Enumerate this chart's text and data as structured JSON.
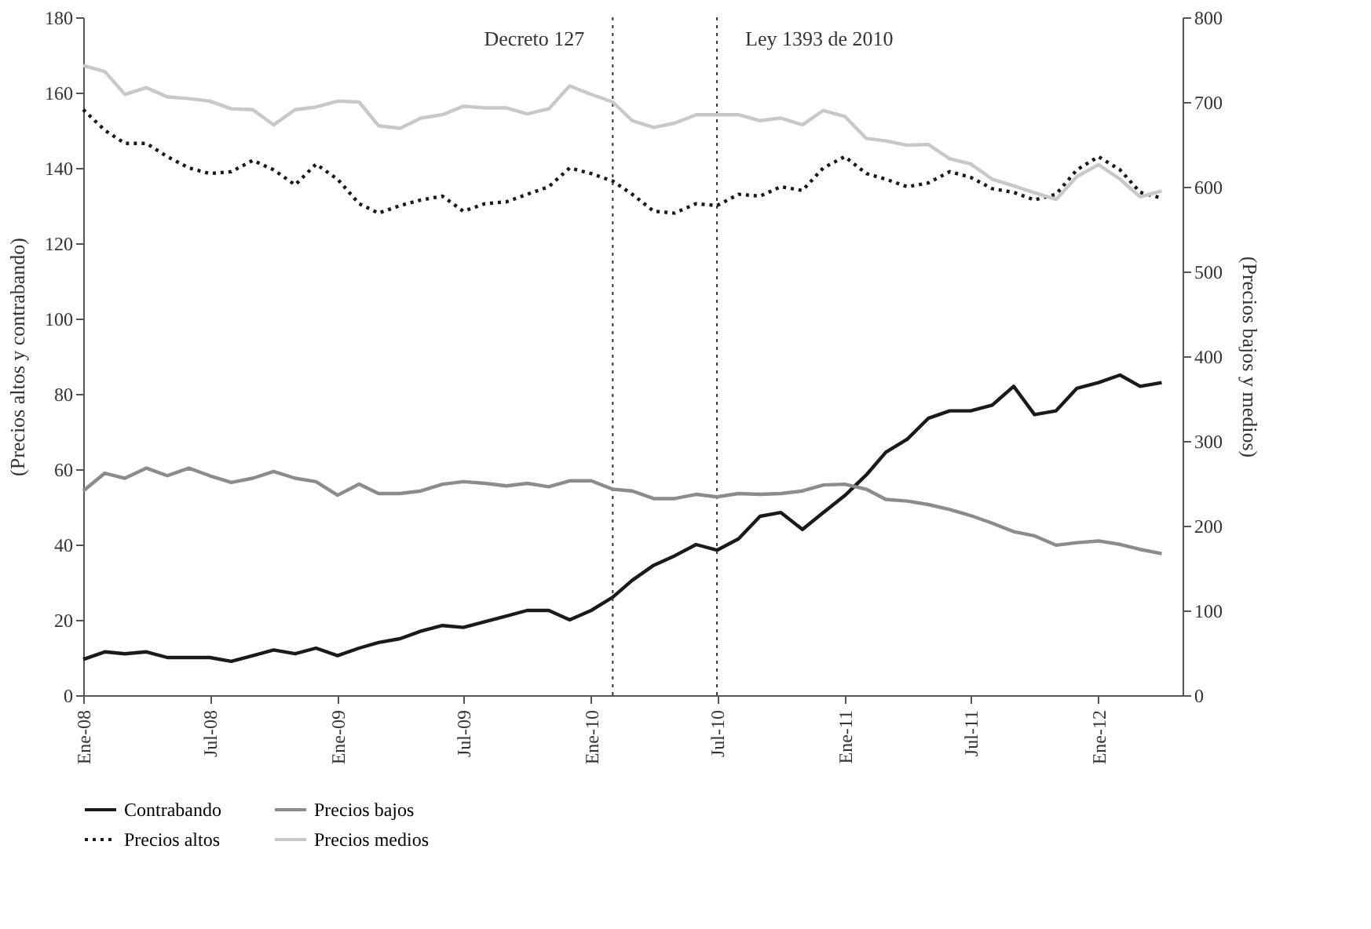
{
  "chart_data": {
    "type": "line",
    "xlabel": null,
    "ylabel": "(Precios altos y contrabando)",
    "y2label": "(Precios bajos y medios)",
    "x": [
      "2008-01",
      "2008-02",
      "2008-03",
      "2008-04",
      "2008-05",
      "2008-06",
      "2008-07",
      "2008-08",
      "2008-09",
      "2008-10",
      "2008-11",
      "2008-12",
      "2009-01",
      "2009-02",
      "2009-03",
      "2009-04",
      "2009-05",
      "2009-06",
      "2009-07",
      "2009-08",
      "2009-09",
      "2009-10",
      "2009-11",
      "2009-12",
      "2010-01",
      "2010-02",
      "2010-03",
      "2010-04",
      "2010-05",
      "2010-06",
      "2010-07",
      "2010-08",
      "2010-09",
      "2010-10",
      "2010-11",
      "2010-12",
      "2011-01",
      "2011-02",
      "2011-03",
      "2011-04",
      "2011-05",
      "2011-06",
      "2011-07",
      "2011-08",
      "2011-09",
      "2011-10",
      "2011-11",
      "2011-12",
      "2012-01",
      "2012-02",
      "2012-03",
      "2012-04"
    ],
    "series": [
      {
        "name": "Contrabando",
        "color": "#1a1a1a",
        "axis": "y",
        "line_style": "solid",
        "values": [
          9.5,
          11.5,
          11,
          11.5,
          10,
          10,
          10,
          9,
          10.5,
          12,
          11,
          12.5,
          10.5,
          12.5,
          14,
          15,
          17,
          18.5,
          18,
          19.5,
          21,
          22.5,
          22.5,
          20,
          22.5,
          26,
          30.5,
          34.5,
          37,
          40,
          38.5,
          41.5,
          47.5,
          48.5,
          44,
          48.5,
          53,
          58.5,
          64.5,
          68,
          73.5,
          75.5,
          75.5,
          77,
          82,
          74.5,
          75.5,
          81.5,
          83,
          85,
          82,
          83
        ]
      },
      {
        "name": "Precios bajos",
        "color": "#8c8c8c",
        "axis": "y2",
        "line_style": "solid",
        "values": [
          241,
          262,
          256,
          268,
          259,
          268,
          259,
          251,
          256,
          264,
          256,
          252,
          236,
          249,
          238,
          238,
          241,
          249,
          252,
          250,
          247,
          250,
          246,
          253,
          253,
          243,
          241,
          232,
          232,
          237,
          234,
          238,
          237,
          238,
          241,
          248,
          249,
          243,
          231,
          229,
          225,
          219,
          212,
          203,
          193,
          188,
          177,
          180,
          182,
          178,
          172,
          167
        ]
      },
      {
        "name": "Precios altos",
        "color": "#1a1a1a",
        "axis": "y",
        "line_style": "dotted",
        "values": [
          155.5,
          150,
          146.5,
          146.5,
          143,
          140,
          138.5,
          139,
          142,
          139.5,
          135.5,
          141,
          137,
          130.5,
          128,
          130,
          131.5,
          132.5,
          128.5,
          130.5,
          131,
          133,
          135,
          140,
          138.5,
          136.5,
          133,
          128.5,
          128,
          130.5,
          130,
          133,
          132.5,
          135,
          134,
          140,
          143,
          138.5,
          137,
          135,
          136,
          139,
          137.5,
          134.5,
          133.5,
          131.5,
          133,
          139.5,
          143,
          139.5,
          133.5,
          132
        ]
      },
      {
        "name": "Precios medios",
        "color": "#c8c8c8",
        "axis": "y2",
        "line_style": "solid",
        "values": [
          743,
          736,
          709,
          717,
          706,
          704,
          701,
          692,
          691,
          673,
          691,
          694,
          701,
          700,
          672,
          669,
          681,
          685,
          695,
          693,
          693,
          686,
          692,
          719,
          709,
          700,
          678,
          670,
          675,
          685,
          685,
          685,
          678,
          681,
          673,
          690,
          683,
          657,
          654,
          649,
          650,
          633,
          627,
          609,
          601,
          593,
          585,
          612,
          626,
          609,
          588,
          595
        ]
      }
    ],
    "xlim": [
      "2008-01",
      "2012-05"
    ],
    "xticks": [
      {
        "value": "2008-01",
        "label": "Ene-08"
      },
      {
        "value": "2008-07",
        "label": "Jul-08"
      },
      {
        "value": "2009-01",
        "label": "Ene-09"
      },
      {
        "value": "2009-07",
        "label": "Jul-09"
      },
      {
        "value": "2010-01",
        "label": "Ene-10"
      },
      {
        "value": "2010-07",
        "label": "Jul-10"
      },
      {
        "value": "2011-01",
        "label": "Ene-11"
      },
      {
        "value": "2011-07",
        "label": "Jul-11"
      },
      {
        "value": "2012-01",
        "label": "Ene-12"
      }
    ],
    "ylim": [
      0,
      180
    ],
    "yticks": [
      0,
      20,
      40,
      60,
      80,
      100,
      120,
      140,
      160,
      180
    ],
    "y2lim": [
      0,
      800
    ],
    "y2ticks": [
      0,
      100,
      200,
      300,
      400,
      500,
      600,
      700,
      800
    ],
    "ref_lines": [
      {
        "axis": "x",
        "value": "2010-02",
        "label": "Decreto 127",
        "color": "#333333",
        "line_style": "dotted"
      },
      {
        "axis": "x",
        "value": "2010-07",
        "label": "Ley 1393 de 2010",
        "color": "#333333",
        "line_style": "dotted"
      }
    ],
    "grid": false,
    "legend": "bottom",
    "marker": "none"
  }
}
